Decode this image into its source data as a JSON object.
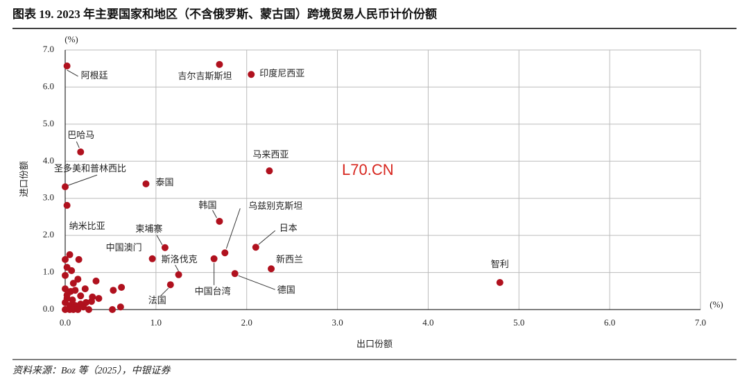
{
  "chart_data": {
    "type": "scatter",
    "title": "图表 19. 2023 年主要国家和地区（不含俄罗斯、蒙古国）跨境贸易人民币计价份额",
    "source": "资料来源：Boz 等（2025），中银证券",
    "watermark": "L70.CN",
    "x_label": "出口份额",
    "y_label": "进口份额",
    "x_unit": "(%)",
    "y_unit": "(%)",
    "color": "#b0111e",
    "grid": true,
    "xlim": [
      0,
      7
    ],
    "ylim": [
      0,
      7
    ],
    "xticks": [
      {
        "value": 0,
        "label": "0.0"
      },
      {
        "value": 1,
        "label": "1.0"
      },
      {
        "value": 2,
        "label": "2.0"
      },
      {
        "value": 3,
        "label": "3.0"
      },
      {
        "value": 4,
        "label": "4.0"
      },
      {
        "value": 5,
        "label": "5.0"
      },
      {
        "value": 6,
        "label": "6.0"
      },
      {
        "value": 7,
        "label": "7.0"
      }
    ],
    "yticks": [
      {
        "value": 0,
        "label": "0.0"
      },
      {
        "value": 1,
        "label": "1.0"
      },
      {
        "value": 2,
        "label": "2.0"
      },
      {
        "value": 3,
        "label": "3.0"
      },
      {
        "value": 4,
        "label": "4.0"
      },
      {
        "value": 5,
        "label": "5.0"
      },
      {
        "value": 6,
        "label": "6.0"
      },
      {
        "value": 7,
        "label": "7.0"
      }
    ],
    "labels": [
      "阿根廷",
      "吉尔吉斯斯坦",
      "印度尼西亚",
      "巴哈马",
      "马来西亚",
      "圣多美和普林西比",
      "泰国",
      "纳米比亚",
      "韩国",
      "乌兹别克斯坦",
      "日本",
      "柬埔寨",
      "中国澳门",
      "斯洛伐克",
      "中国台湾",
      "新西兰",
      "德国",
      "法国",
      "智利",
      null,
      null,
      null,
      null,
      null,
      null,
      null,
      null,
      null,
      null,
      null,
      null,
      null,
      null,
      null,
      null,
      null,
      null,
      null,
      null,
      null,
      null,
      null,
      null,
      null,
      null,
      null,
      null,
      null,
      null,
      null,
      null,
      null,
      null,
      null
    ],
    "x": [
      0.02,
      1.7,
      2.05,
      0.17,
      2.25,
      0.0,
      0.89,
      0.02,
      1.7,
      1.76,
      2.1,
      1.1,
      0.96,
      1.25,
      1.64,
      2.27,
      1.87,
      1.16,
      4.79,
      0.05,
      0.15,
      0.0,
      0.02,
      0.07,
      0.0,
      0.14,
      0.34,
      0.22,
      0.0,
      0.06,
      0.11,
      0.17,
      0.02,
      0.08,
      0.3,
      0.37,
      0.53,
      0.62,
      0.0,
      0.05,
      0.11,
      0.17,
      0.23,
      0.29,
      0.26,
      0.52,
      0.61,
      0.0,
      0.05,
      0.09,
      0.14,
      0.02,
      0.09,
      0.2
    ],
    "y": [
      6.57,
      6.61,
      6.34,
      4.25,
      3.74,
      3.31,
      3.39,
      2.81,
      2.38,
      1.53,
      1.68,
      1.67,
      1.37,
      0.94,
      1.37,
      1.1,
      0.97,
      0.67,
      0.73,
      1.48,
      1.35,
      1.35,
      1.14,
      1.05,
      0.92,
      0.82,
      0.77,
      0.56,
      0.56,
      0.49,
      0.52,
      0.37,
      0.3,
      0.26,
      0.34,
      0.3,
      0.52,
      0.6,
      0.19,
      0.11,
      0.11,
      0.15,
      0.19,
      0.22,
      0.0,
      0.0,
      0.07,
      0.0,
      0.0,
      0.0,
      0.0,
      0.39,
      0.71,
      0.07
    ]
  }
}
